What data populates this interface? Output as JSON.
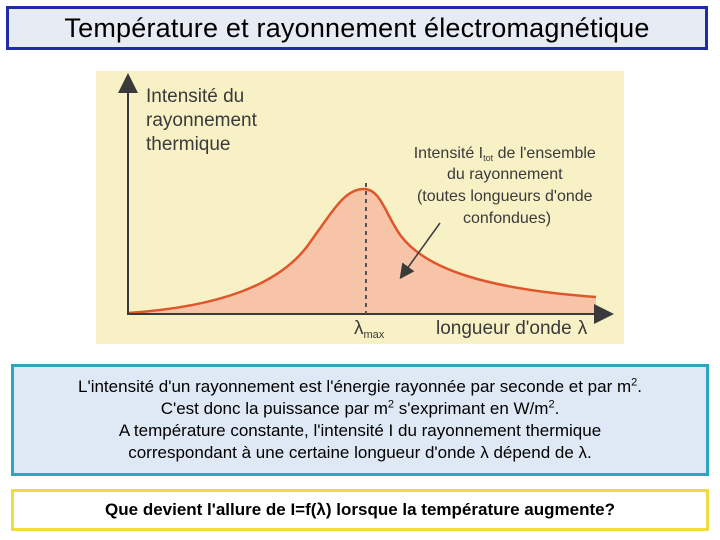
{
  "slide": {
    "title": "Température et rayonnement électromagnétique"
  },
  "diagram": {
    "y_axis_label": [
      "Intensité du",
      "rayonnement",
      "thermique"
    ],
    "x_axis_label": "longueur d'onde",
    "x_axis_symbol": "λ",
    "peak_symbol": "λ",
    "peak_subscript": "max",
    "annotation": {
      "prefix": "Intensité I",
      "subscript": "tot",
      "suffix": " de l'ensemble",
      "lines": [
        "du rayonnement",
        "(toutes longueurs d'onde",
        "confondues)"
      ]
    },
    "colors": {
      "background": "#f8f1c6",
      "curve": "#e0552c",
      "fill": "#f8c4a8",
      "axis": "#3a3a3a"
    }
  },
  "info": {
    "line1_text": "L'intensité d'un rayonnement est l'énergie rayonnée par seconde et par m",
    "line1_sup": "2",
    "line1_end": ".",
    "line2_a": "C'est donc la puissance par m",
    "line2_sup1": "2",
    "line2_b": " s'exprimant en W/m",
    "line2_sup2": "2",
    "line2_end": ".",
    "line3": "A température constante, l'intensité I du rayonnement thermique",
    "line4": "correspondant à une certaine longueur d'onde λ dépend de λ."
  },
  "question": {
    "text": "Que devient l'allure de I=f(λ) lorsque la température augmente?"
  }
}
